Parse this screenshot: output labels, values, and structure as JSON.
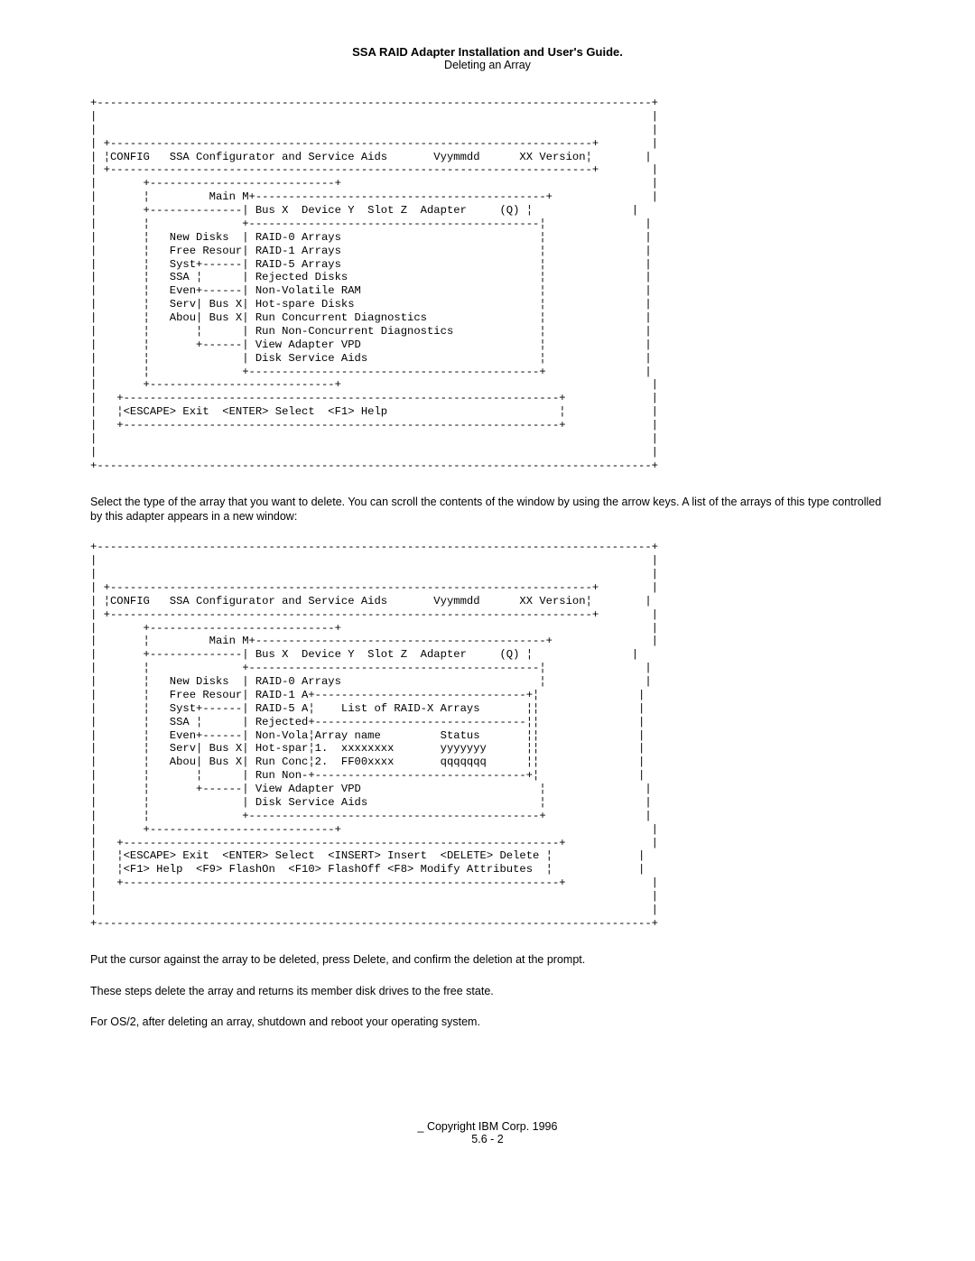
{
  "header": {
    "title": "SSA RAID Adapter Installation and User's Guide.",
    "subtitle": "Deleting an Array"
  },
  "code1": "+------------------------------------------------------------------------------------+\n|                                                                                    |\n|                                                                                    |\n| +-------------------------------------------------------------------------+        |\n| ¦CONFIG   SSA Configurator and Service Aids       Vyymmdd      XX Version¦        |\n| +-------------------------------------------------------------------------+        |\n|       +----------------------------+                                               |\n|       ¦         Main M+--------------------------------------------+               |\n|       +--------------| Bus X  Device Y  Slot Z  Adapter     (Q) ¦               |\n|       ¦              +--------------------------------------------¦               |\n|       ¦   New Disks  | RAID-0 Arrays                              ¦               |\n|       ¦   Free Resour| RAID-1 Arrays                              ¦               |\n|       ¦   Syst+------| RAID-5 Arrays                              ¦               |\n|       ¦   SSA ¦      | Rejected Disks                             ¦               |\n|       ¦   Even+------| Non-Volatile RAM                           ¦               |\n|       ¦   Serv| Bus X| Hot-spare Disks                            ¦               |\n|       ¦   Abou| Bus X| Run Concurrent Diagnostics                 ¦               |\n|       ¦       ¦      | Run Non-Concurrent Diagnostics             ¦               |\n|       ¦       +------| View Adapter VPD                           ¦               |\n|       ¦              | Disk Service Aids                          ¦               |\n|       ¦              +--------------------------------------------+               |\n|       +----------------------------+                                               |\n|   +------------------------------------------------------------------+             |\n|   ¦<ESCAPE> Exit  <ENTER> Select  <F1> Help                          ¦             |\n|   +------------------------------------------------------------------+             |\n|                                                                                    |\n|                                                                                    |\n+------------------------------------------------------------------------------------+",
  "para1": "Select the type of the array that you want to delete.  You can scroll the contents of the window by using the arrow keys.  A list of the arrays of this type controlled by this adapter appears in a new window:",
  "code2": "+------------------------------------------------------------------------------------+\n|                                                                                    |\n|                                                                                    |\n| +-------------------------------------------------------------------------+        |\n| ¦CONFIG   SSA Configurator and Service Aids       Vyymmdd      XX Version¦        |\n| +-------------------------------------------------------------------------+        |\n|       +----------------------------+                                               |\n|       ¦         Main M+--------------------------------------------+               |\n|       +--------------| Bus X  Device Y  Slot Z  Adapter     (Q) ¦               |\n|       ¦              +--------------------------------------------¦               |\n|       ¦   New Disks  | RAID-0 Arrays                              ¦               |\n|       ¦   Free Resour| RAID-1 A+--------------------------------+¦               |\n|       ¦   Syst+------| RAID-5 A¦    List of RAID-X Arrays       ¦¦               |\n|       ¦   SSA ¦      | Rejected+--------------------------------¦¦               |\n|       ¦   Even+------| Non-Vola¦Array name         Status       ¦¦               |\n|       ¦   Serv| Bus X| Hot-spar¦1.  xxxxxxxx       yyyyyyy      ¦¦               |\n|       ¦   Abou| Bus X| Run Conc¦2.  FF00xxxx       qqqqqqq      ¦¦               |\n|       ¦       ¦      | Run Non-+--------------------------------+¦               |\n|       ¦       +------| View Adapter VPD                           ¦               |\n|       ¦              | Disk Service Aids                          ¦               |\n|       ¦              +--------------------------------------------+               |\n|       +----------------------------+                                               |\n|   +------------------------------------------------------------------+             |\n|   ¦<ESCAPE> Exit  <ENTER> Select  <INSERT> Insert  <DELETE> Delete ¦             |\n|   ¦<F1> Help  <F9> FlashOn  <F10> FlashOff <F8> Modify Attributes  ¦             |\n|   +------------------------------------------------------------------+             |\n|                                                                                    |\n|                                                                                    |\n+------------------------------------------------------------------------------------+",
  "para2": "Put the cursor against the array to be deleted, press Delete, and confirm the deletion at the prompt.",
  "para3": "These steps delete the array and returns its member disk drives to the free state.",
  "para4": "For OS/2, after deleting an array, shutdown and reboot your operating system.",
  "footer": {
    "copyright": "_ Copyright IBM Corp. 1996",
    "page": "5.6 - 2"
  }
}
